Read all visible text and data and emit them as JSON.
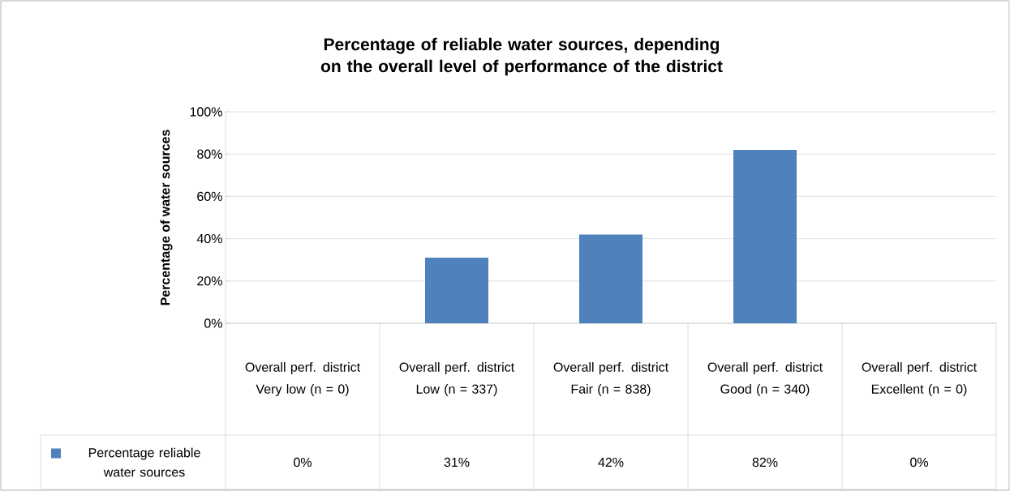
{
  "chart_data": {
    "type": "bar",
    "title": "Percentage of reliable water sources, depending on the overall level of performance of the district",
    "ylabel": "Percentage of water sources",
    "categories": [
      "Overall perf. district Very low (n = 0)",
      "Overall perf. district Low (n = 337)",
      "Overall perf. district Fair (n = 838)",
      "Overall perf. district Good (n = 340)",
      "Overall perf. district Excellent (n = 0)"
    ],
    "series": [
      {
        "name": "Percentage reliable water sources",
        "color": "#4f81bd",
        "values": [
          0,
          31,
          42,
          82,
          0
        ],
        "value_labels": [
          "0%",
          "31%",
          "42%",
          "82%",
          "0%"
        ]
      }
    ],
    "ylim": [
      0,
      100
    ],
    "yticks": [
      {
        "value": 0,
        "label": "0%"
      },
      {
        "value": 20,
        "label": "20%"
      },
      {
        "value": 40,
        "label": "40%"
      },
      {
        "value": 60,
        "label": "60%"
      },
      {
        "value": 80,
        "label": "80%"
      },
      {
        "value": 100,
        "label": "100%"
      }
    ],
    "grid": "y",
    "legend": "bottom"
  }
}
